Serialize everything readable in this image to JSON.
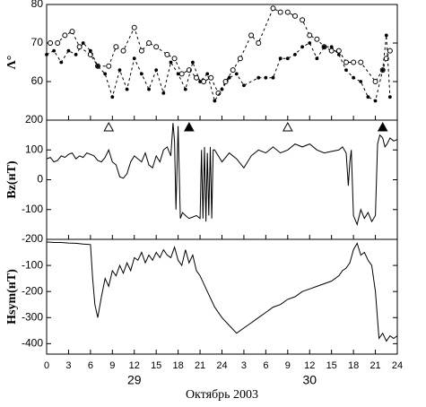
{
  "chart_data": [
    {
      "type": "line",
      "ylabel": "Λ°",
      "ylim": [
        50,
        80
      ],
      "yticks": [
        60,
        70,
        80
      ],
      "xlim": [
        0,
        48
      ],
      "series": [
        {
          "color": "#000000",
          "dash": true,
          "marker": "circle",
          "x": [
            0.5,
            1.5,
            2.5,
            3.5,
            4.5,
            6,
            7,
            8.5,
            9.5,
            10.5,
            12,
            13,
            14,
            15,
            16.5,
            17.5,
            18.5,
            19.5,
            20.5,
            21.5,
            22.5,
            23.5,
            24.5,
            25.5,
            26.5,
            28,
            29,
            31,
            32,
            33,
            34,
            35,
            36,
            37,
            38,
            39,
            40,
            41,
            42,
            43,
            45,
            46,
            46.5,
            47
          ],
          "values": [
            70,
            70,
            72,
            73,
            69,
            67,
            64,
            64,
            69,
            68,
            74,
            68,
            70,
            69,
            67,
            66,
            62,
            63,
            61,
            60,
            61,
            57,
            60,
            63,
            66,
            72,
            70,
            79,
            78,
            78,
            77,
            76,
            72,
            71,
            69,
            68,
            68,
            65,
            65,
            65,
            60,
            63,
            66,
            68
          ]
        },
        {
          "color": "#000000",
          "dash": true,
          "marker": "dot",
          "x": [
            0,
            1,
            2,
            3,
            4,
            5,
            6,
            7,
            8,
            9,
            10,
            11,
            12,
            13,
            14,
            15,
            16,
            17,
            18,
            19,
            20,
            21,
            22,
            23,
            24,
            25,
            26,
            27,
            29,
            30,
            31,
            32,
            33,
            34,
            35,
            36,
            37,
            38,
            39,
            40,
            41,
            42,
            43,
            44,
            45,
            46,
            46.5,
            47
          ],
          "values": [
            67,
            68,
            65,
            68,
            67,
            70,
            68,
            64,
            62,
            56,
            63,
            58,
            66,
            62,
            58,
            63,
            57,
            65,
            62,
            58,
            65,
            60,
            62,
            55,
            58,
            61,
            62,
            59,
            61,
            61,
            61,
            66,
            66,
            67,
            69,
            70,
            66,
            69,
            69,
            67,
            63,
            61,
            60,
            56,
            55,
            63,
            72,
            56
          ]
        }
      ]
    },
    {
      "type": "line",
      "ylabel": "Bz(нТ)",
      "ylim": [
        -200,
        200
      ],
      "yticks": [
        -200,
        -100,
        0,
        100,
        200
      ],
      "xlim": [
        0,
        48
      ],
      "markers": [
        {
          "x": 8.5,
          "filled": false
        },
        {
          "x": 19.5,
          "filled": true
        },
        {
          "x": 33,
          "filled": false
        },
        {
          "x": 46,
          "filled": true
        }
      ],
      "series": [
        {
          "color": "#000000",
          "x": [
            0,
            0.5,
            1,
            1.5,
            2,
            2.5,
            3,
            3.5,
            4,
            4.5,
            5,
            5.5,
            6,
            6.5,
            7,
            7.5,
            8,
            8.5,
            9,
            9.5,
            10,
            10.5,
            11,
            11.5,
            12,
            12.5,
            13,
            13.5,
            14,
            14.5,
            15,
            15.5,
            16,
            16.5,
            17,
            17.3,
            17.5,
            17.7,
            18,
            18.3,
            18.6,
            19,
            19.5,
            20,
            20.5,
            21,
            21.2,
            21.4,
            21.6,
            21.8,
            22,
            22.2,
            22.4,
            22.6,
            22.8,
            23,
            23.5,
            24,
            25,
            26,
            27,
            28,
            29,
            30,
            31,
            32,
            33,
            34,
            35,
            36,
            37,
            38,
            39,
            40,
            40.5,
            41,
            41.3,
            41.5,
            41.7,
            42,
            42.5,
            43,
            43.5,
            44,
            44.5,
            45,
            45.3,
            45.6,
            46,
            46.3,
            46.6,
            47,
            47.5,
            48
          ],
          "values": [
            70,
            75,
            60,
            65,
            80,
            75,
            85,
            90,
            70,
            80,
            75,
            90,
            85,
            80,
            65,
            60,
            75,
            100,
            60,
            50,
            10,
            5,
            20,
            60,
            80,
            70,
            60,
            90,
            50,
            40,
            80,
            60,
            100,
            110,
            80,
            190,
            130,
            -100,
            180,
            -130,
            -110,
            -120,
            -130,
            -125,
            -120,
            -130,
            100,
            -130,
            110,
            -140,
            90,
            -120,
            110,
            -130,
            100,
            100,
            80,
            60,
            90,
            70,
            40,
            80,
            100,
            90,
            110,
            90,
            100,
            120,
            110,
            120,
            100,
            90,
            95,
            100,
            110,
            90,
            -20,
            60,
            100,
            -120,
            -150,
            -100,
            -130,
            -110,
            -140,
            -120,
            120,
            150,
            140,
            110,
            120,
            140,
            130,
            135
          ]
        }
      ]
    },
    {
      "type": "line",
      "ylabel": "Hsym(нТ)",
      "ylim": [
        -440,
        0
      ],
      "yticks": [
        -400,
        -300,
        -200,
        -100
      ],
      "xlim": [
        0,
        48
      ],
      "xticks": [
        0,
        3,
        6,
        9,
        12,
        15,
        18,
        21,
        24,
        {
          "value": 27,
          "label": "3"
        },
        {
          "value": 30,
          "label": "6"
        },
        {
          "value": 33,
          "label": "9"
        },
        {
          "value": 36,
          "label": "12"
        },
        {
          "value": 39,
          "label": "15"
        },
        {
          "value": 42,
          "label": "18"
        },
        {
          "value": 45,
          "label": "21"
        },
        {
          "value": 48,
          "label": "24"
        }
      ],
      "annotations": [
        {
          "x": 12,
          "text": "29"
        },
        {
          "x": 36,
          "text": "30"
        }
      ],
      "xlabel": "Октябрь 2003",
      "series": [
        {
          "color": "#000000",
          "x": [
            0,
            1,
            2,
            3,
            4,
            5,
            6,
            6.3,
            6.6,
            7,
            7.5,
            8,
            8.5,
            9,
            9.5,
            10,
            10.5,
            11,
            11.5,
            12,
            12.5,
            13,
            13.5,
            14,
            14.5,
            15,
            15.5,
            16,
            16.5,
            17,
            17.5,
            18,
            18.5,
            19,
            19.5,
            20,
            20.5,
            21,
            22,
            23,
            24,
            25,
            26,
            27,
            28,
            29,
            30,
            31,
            32,
            33,
            34,
            35,
            36,
            37,
            38,
            39,
            40,
            40.5,
            41,
            41.5,
            42,
            42.5,
            43,
            43.5,
            44,
            44.5,
            45,
            45.5,
            46,
            46.5,
            47,
            47.5,
            48
          ],
          "values": [
            -10,
            -12,
            -12,
            -14,
            -15,
            -18,
            -20,
            -150,
            -250,
            -300,
            -220,
            -150,
            -180,
            -120,
            -140,
            -100,
            -130,
            -90,
            -120,
            -70,
            -80,
            -50,
            -90,
            -60,
            -80,
            -50,
            -70,
            -40,
            -60,
            -70,
            -30,
            -80,
            -100,
            -40,
            -90,
            -60,
            -120,
            -140,
            -200,
            -260,
            -300,
            -330,
            -360,
            -340,
            -320,
            -300,
            -280,
            -260,
            -250,
            -230,
            -220,
            -200,
            -190,
            -180,
            -170,
            -160,
            -140,
            -120,
            -110,
            -90,
            -40,
            -15,
            -60,
            -50,
            -80,
            -100,
            -200,
            -380,
            -360,
            -390,
            -370,
            -380,
            -370
          ]
        }
      ]
    }
  ]
}
